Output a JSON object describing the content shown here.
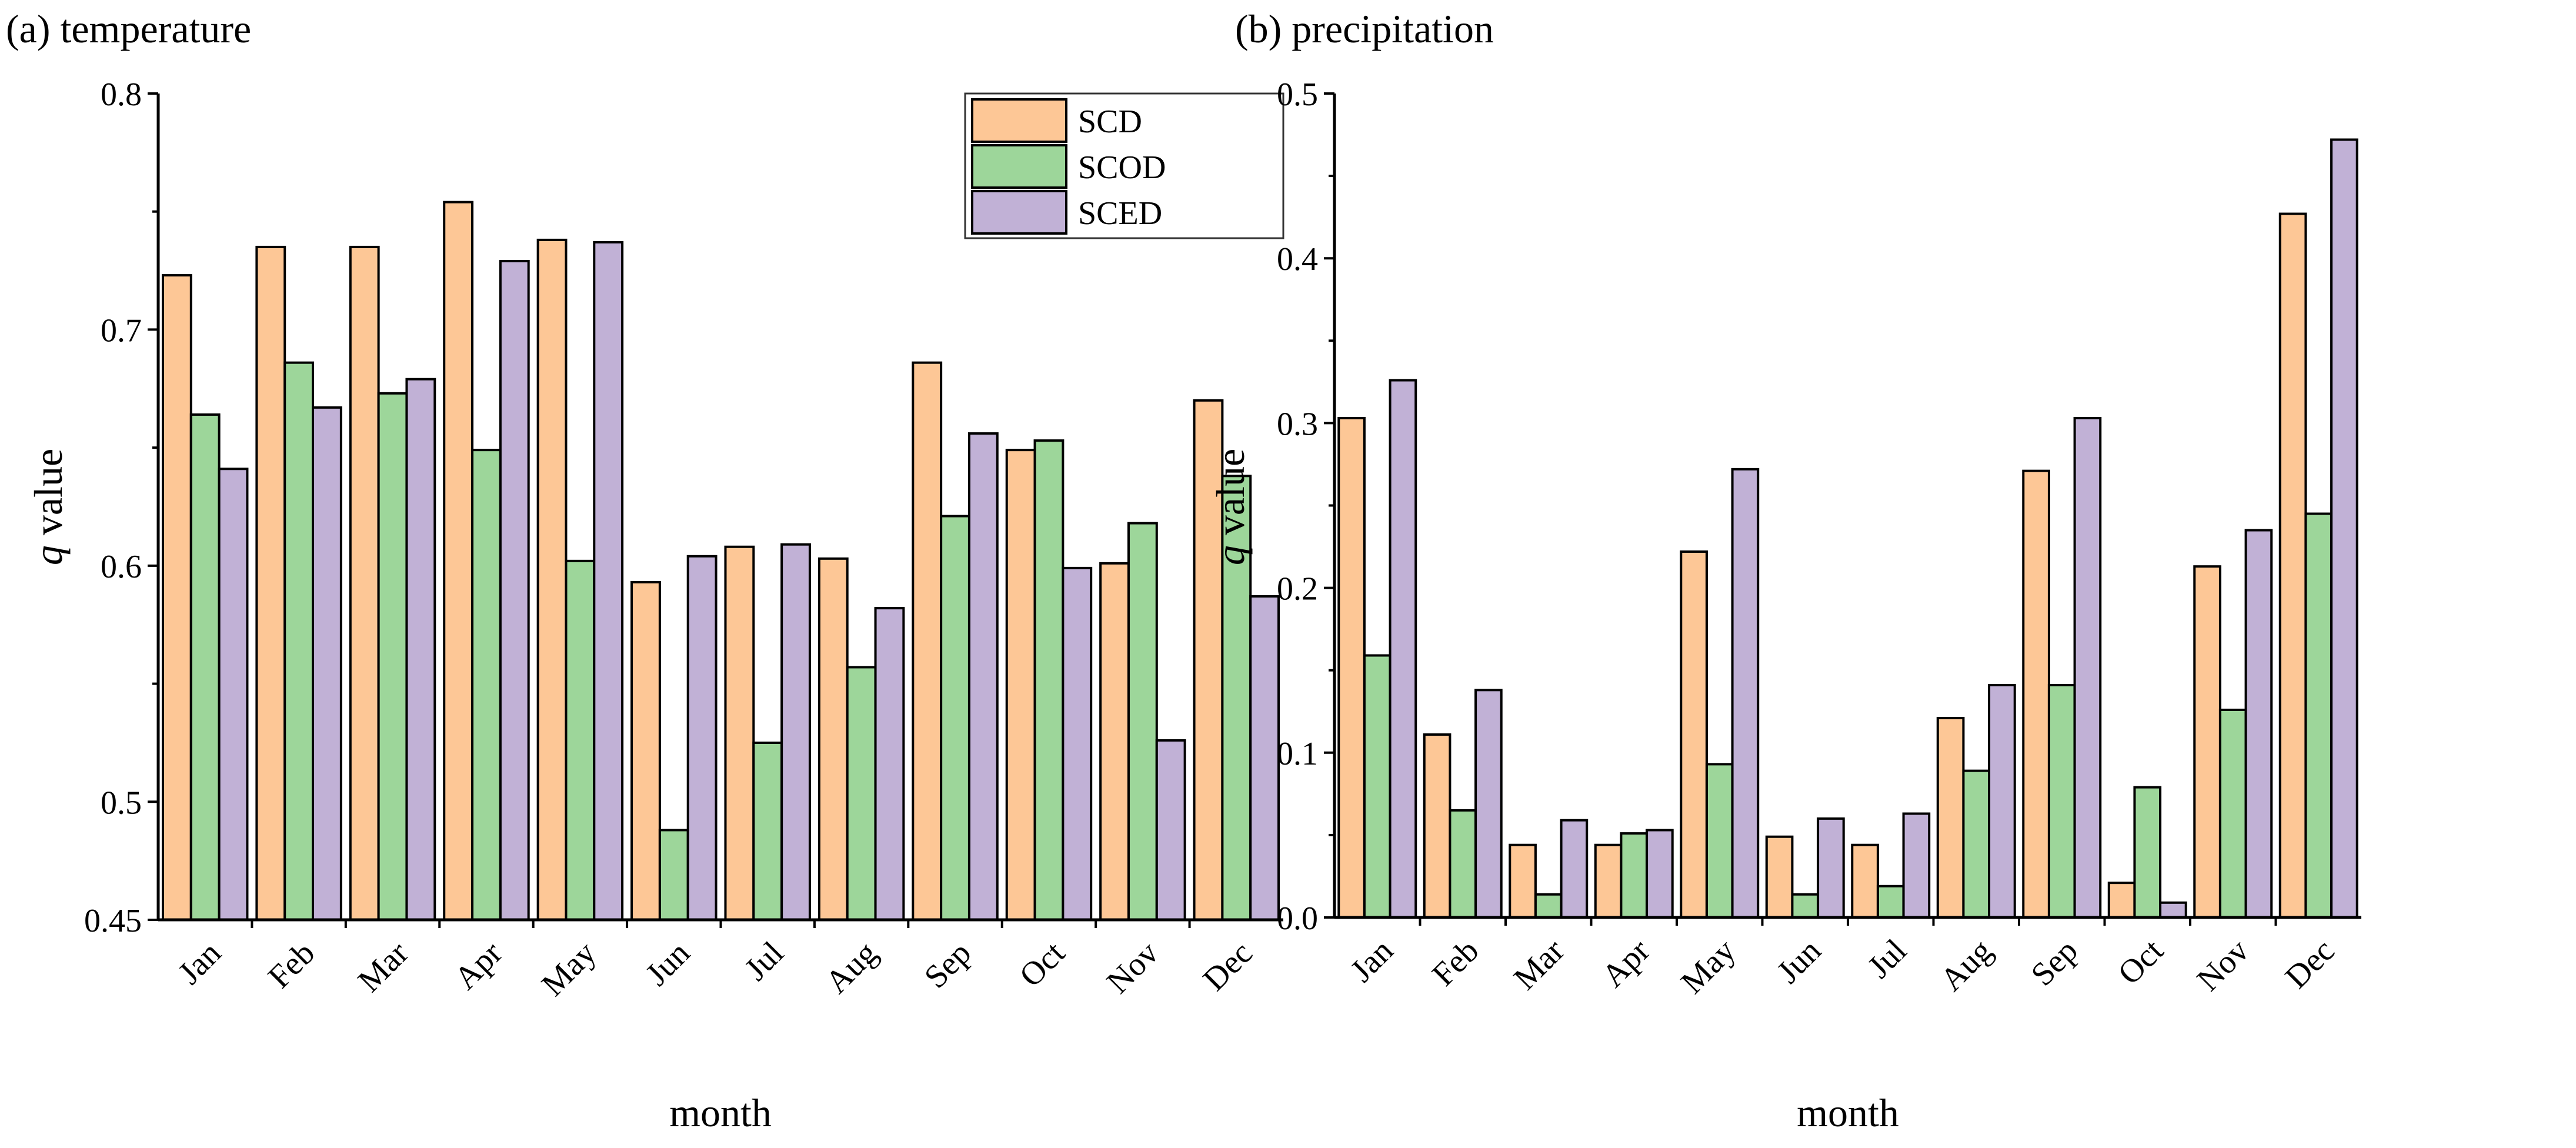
{
  "chart_data": [
    {
      "type": "bar",
      "title": "(a) temperature",
      "xlabel": "month",
      "ylabel_italic": "q",
      "ylabel_rest": " value",
      "ylim": [
        0.45,
        0.8
      ],
      "yticks": [
        0.45,
        0.5,
        0.6,
        0.7,
        0.8
      ],
      "ytick_labels": [
        "0.45",
        "0.5",
        "0.6",
        "0.7",
        "0.8"
      ],
      "yminor": [
        0.55,
        0.65,
        0.75
      ],
      "legend_position": "top-right",
      "categories": [
        "Jan",
        "Feb",
        "Mar",
        "Apr",
        "May",
        "Jun",
        "Jul",
        "Aug",
        "Sep",
        "Oct",
        "Nov",
        "Dec"
      ],
      "series": [
        {
          "name": "SCD",
          "color": "#FDC796",
          "values": [
            0.723,
            0.735,
            0.735,
            0.754,
            0.738,
            0.593,
            0.608,
            0.603,
            0.686,
            0.649,
            0.601,
            0.67
          ]
        },
        {
          "name": "SCOD",
          "color": "#9DD69A",
          "values": [
            0.664,
            0.686,
            0.673,
            0.649,
            0.602,
            0.488,
            0.525,
            0.557,
            0.621,
            0.653,
            0.618,
            0.638
          ]
        },
        {
          "name": "SCED",
          "color": "#C1B1D6",
          "values": [
            0.641,
            0.667,
            0.679,
            0.729,
            0.737,
            0.604,
            0.609,
            0.582,
            0.656,
            0.599,
            0.526,
            0.587
          ]
        }
      ]
    },
    {
      "type": "bar",
      "title": "(b) precipitation",
      "xlabel": "month",
      "ylabel_italic": "q",
      "ylabel_rest": " value",
      "ylim": [
        0.0,
        0.5
      ],
      "yticks": [
        0.0,
        0.1,
        0.2,
        0.3,
        0.4,
        0.5
      ],
      "ytick_labels": [
        "0.0",
        "0.1",
        "0.2",
        "0.3",
        "0.4",
        "0.5"
      ],
      "yminor": [
        0.05,
        0.15,
        0.25,
        0.35,
        0.45
      ],
      "categories": [
        "Jan",
        "Feb",
        "Mar",
        "Apr",
        "May",
        "Jun",
        "Jul",
        "Aug",
        "Sep",
        "Oct",
        "Nov",
        "Dec"
      ],
      "series": [
        {
          "name": "SCD",
          "color": "#FDC796",
          "values": [
            0.303,
            0.111,
            0.044,
            0.044,
            0.222,
            0.049,
            0.044,
            0.121,
            0.271,
            0.021,
            0.213,
            0.427
          ]
        },
        {
          "name": "SCOD",
          "color": "#9DD69A",
          "values": [
            0.159,
            0.065,
            0.014,
            0.051,
            0.093,
            0.014,
            0.019,
            0.089,
            0.141,
            0.079,
            0.126,
            0.245
          ]
        },
        {
          "name": "SCED",
          "color": "#C1B1D6",
          "values": [
            0.326,
            0.138,
            0.059,
            0.053,
            0.272,
            0.06,
            0.063,
            0.141,
            0.303,
            0.009,
            0.235,
            0.472
          ]
        }
      ]
    }
  ]
}
